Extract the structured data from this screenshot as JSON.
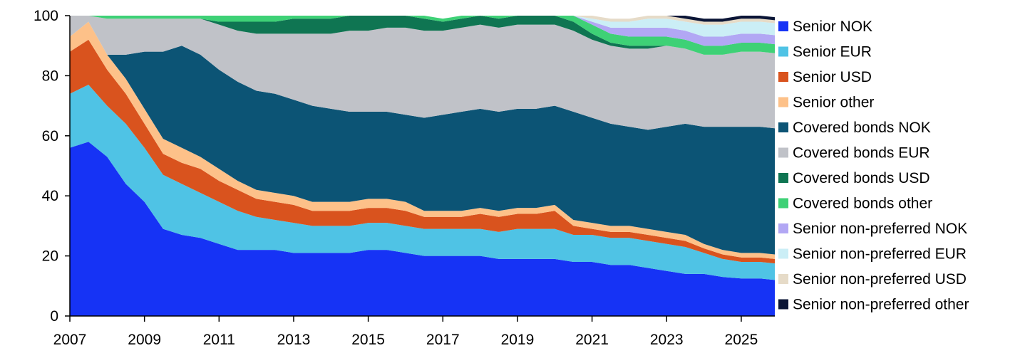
{
  "chart_data": {
    "type": "area",
    "stacked": true,
    "y_unit": "percent",
    "title": "",
    "xlabel": "",
    "ylabel": "",
    "xlim": [
      2007.0,
      2025.9
    ],
    "ylim": [
      0,
      100
    ],
    "x_ticks": [
      2007,
      2009,
      2011,
      2013,
      2015,
      2017,
      2019,
      2021,
      2023,
      2025
    ],
    "x_tick_labels": [
      "2007",
      "2009",
      "2011",
      "2013",
      "2015",
      "2017",
      "2019",
      "2021",
      "2023",
      "2025"
    ],
    "y_ticks": [
      0,
      20,
      40,
      60,
      80,
      100
    ],
    "y_tick_labels": [
      "0",
      "20",
      "40",
      "60",
      "80",
      "100"
    ],
    "grid": false,
    "legend_position": "right",
    "x": [
      2007.0,
      2007.5,
      2008.0,
      2008.5,
      2009.0,
      2009.5,
      2010.0,
      2010.5,
      2011.0,
      2011.5,
      2012.0,
      2012.5,
      2013.0,
      2013.5,
      2014.0,
      2014.5,
      2015.0,
      2015.5,
      2016.0,
      2016.5,
      2017.0,
      2017.5,
      2018.0,
      2018.5,
      2019.0,
      2019.5,
      2020.0,
      2020.5,
      2021.0,
      2021.5,
      2022.0,
      2022.5,
      2023.0,
      2023.5,
      2024.0,
      2024.5,
      2025.0,
      2025.5,
      2025.9
    ],
    "series": [
      {
        "name": "Senior NOK",
        "color": "#1633f5",
        "values": [
          56,
          58,
          53,
          44,
          38,
          29,
          27,
          26,
          24,
          22,
          22,
          22,
          21,
          21,
          21,
          21,
          22,
          22,
          21,
          20,
          20,
          20,
          20,
          19,
          19,
          19,
          19,
          18,
          18,
          17,
          17,
          16,
          15,
          14,
          14,
          13,
          12.5,
          12.5,
          12
        ]
      },
      {
        "name": "Senior EUR",
        "color": "#4fc3e5",
        "values": [
          18,
          19,
          17,
          20,
          18,
          18,
          17,
          15,
          14,
          13,
          11,
          10,
          10,
          9,
          9,
          9,
          9,
          9,
          9,
          9,
          9,
          9,
          9,
          9,
          10,
          10,
          10,
          9,
          9,
          9,
          9,
          9,
          9,
          9,
          7,
          6,
          5.5,
          5.5,
          5.5
        ]
      },
      {
        "name": "Senior USD",
        "color": "#d9531e",
        "values": [
          14,
          15,
          12,
          10,
          8,
          7,
          7,
          8,
          7,
          7,
          6,
          6,
          6,
          5,
          5,
          5,
          5,
          5,
          5,
          4,
          4,
          4,
          5,
          5,
          5,
          5,
          6,
          3,
          2,
          2,
          2,
          2,
          2,
          2,
          1.5,
          1.5,
          1.5,
          1.5,
          1.5
        ]
      },
      {
        "name": "Senior other",
        "color": "#fdc189",
        "values": [
          5,
          6,
          5,
          5,
          5,
          5,
          5,
          4,
          4,
          3,
          3,
          3,
          3,
          3,
          3,
          3,
          3,
          3,
          3,
          2,
          2,
          2,
          2,
          2,
          2,
          2,
          2,
          2,
          2,
          2,
          2,
          2,
          2,
          2,
          1.5,
          1.5,
          1.5,
          1.5,
          1.5
        ]
      },
      {
        "name": "Covered bonds NOK",
        "color": "#0c5475",
        "values": [
          0,
          0,
          0,
          8,
          19,
          29,
          34,
          34,
          33,
          33,
          33,
          33,
          32,
          32,
          31,
          30,
          29,
          29,
          29,
          31,
          32,
          33,
          33,
          33,
          33,
          33,
          33,
          36,
          35,
          34,
          33,
          33,
          35,
          37,
          39,
          41,
          42,
          42,
          42
        ]
      },
      {
        "name": "Covered bonds EUR",
        "color": "#c0c2c8",
        "values": [
          7,
          2,
          12,
          12,
          11,
          11,
          9,
          12,
          15,
          17,
          19,
          20,
          22,
          24,
          25,
          27,
          27,
          28,
          29,
          29,
          28,
          28,
          28,
          28,
          28,
          28,
          27,
          27,
          26,
          26,
          26,
          27,
          27,
          25,
          24,
          24,
          25,
          25,
          25
        ]
      },
      {
        "name": "Covered bonds USD",
        "color": "#0f7552",
        "values": [
          0,
          0,
          0,
          0,
          0,
          0,
          0,
          0,
          1,
          3,
          4,
          4,
          5,
          5,
          5,
          5,
          5,
          4,
          4,
          4,
          3,
          3,
          3,
          3,
          3,
          3,
          3,
          3,
          2,
          1,
          1,
          1,
          0,
          0,
          0,
          0,
          0,
          0,
          0
        ]
      },
      {
        "name": "Covered bonds other",
        "color": "#3ed176",
        "values": [
          0,
          0,
          1,
          1,
          1,
          1,
          1,
          1,
          2,
          2,
          2,
          2,
          1,
          1,
          1,
          1,
          1,
          1,
          1,
          1,
          1,
          1,
          1,
          1,
          1,
          1,
          1,
          2,
          3,
          3,
          3,
          3,
          3,
          3,
          3,
          3,
          3,
          3,
          3
        ]
      },
      {
        "name": "Senior non-preferred NOK",
        "color": "#b2a7f4",
        "values": [
          0,
          0,
          0,
          0,
          0,
          0,
          0,
          0,
          0,
          0,
          0,
          0,
          0,
          0,
          0,
          0,
          0,
          0,
          0,
          0,
          0,
          0,
          0,
          0,
          0,
          0,
          0,
          0,
          1,
          2,
          3,
          3,
          3,
          3,
          3,
          3,
          3,
          3,
          3
        ]
      },
      {
        "name": "Senior non-preferred EUR",
        "color": "#cbeef6",
        "values": [
          0,
          0,
          0,
          0,
          0,
          0,
          0,
          0,
          0,
          0,
          0,
          0,
          0,
          0,
          0,
          0,
          0,
          0,
          0,
          0,
          0,
          0,
          0,
          0,
          0,
          0,
          0,
          0,
          1,
          2,
          2,
          3,
          3,
          3,
          4,
          4,
          4,
          4,
          4
        ]
      },
      {
        "name": "Senior non-preferred USD",
        "color": "#e6dbc8",
        "values": [
          0,
          0,
          0,
          0,
          0,
          0,
          0,
          0,
          0,
          0,
          0,
          0,
          0,
          0,
          0,
          0,
          0,
          0,
          0,
          0,
          0,
          0,
          0,
          0,
          0,
          0,
          0,
          0,
          1,
          1,
          1,
          1,
          1,
          1,
          1,
          1,
          1,
          1,
          1
        ]
      },
      {
        "name": "Senior non-preferred other",
        "color": "#0b1536",
        "values": [
          0,
          0,
          0,
          0,
          0,
          0,
          0,
          0,
          0,
          0,
          0,
          0,
          0,
          0,
          0,
          0,
          0,
          0,
          0,
          0,
          0,
          0,
          0,
          0,
          0,
          0,
          0,
          0,
          0,
          0,
          0,
          0,
          0,
          1,
          1,
          1,
          1,
          1,
          1
        ]
      }
    ]
  }
}
